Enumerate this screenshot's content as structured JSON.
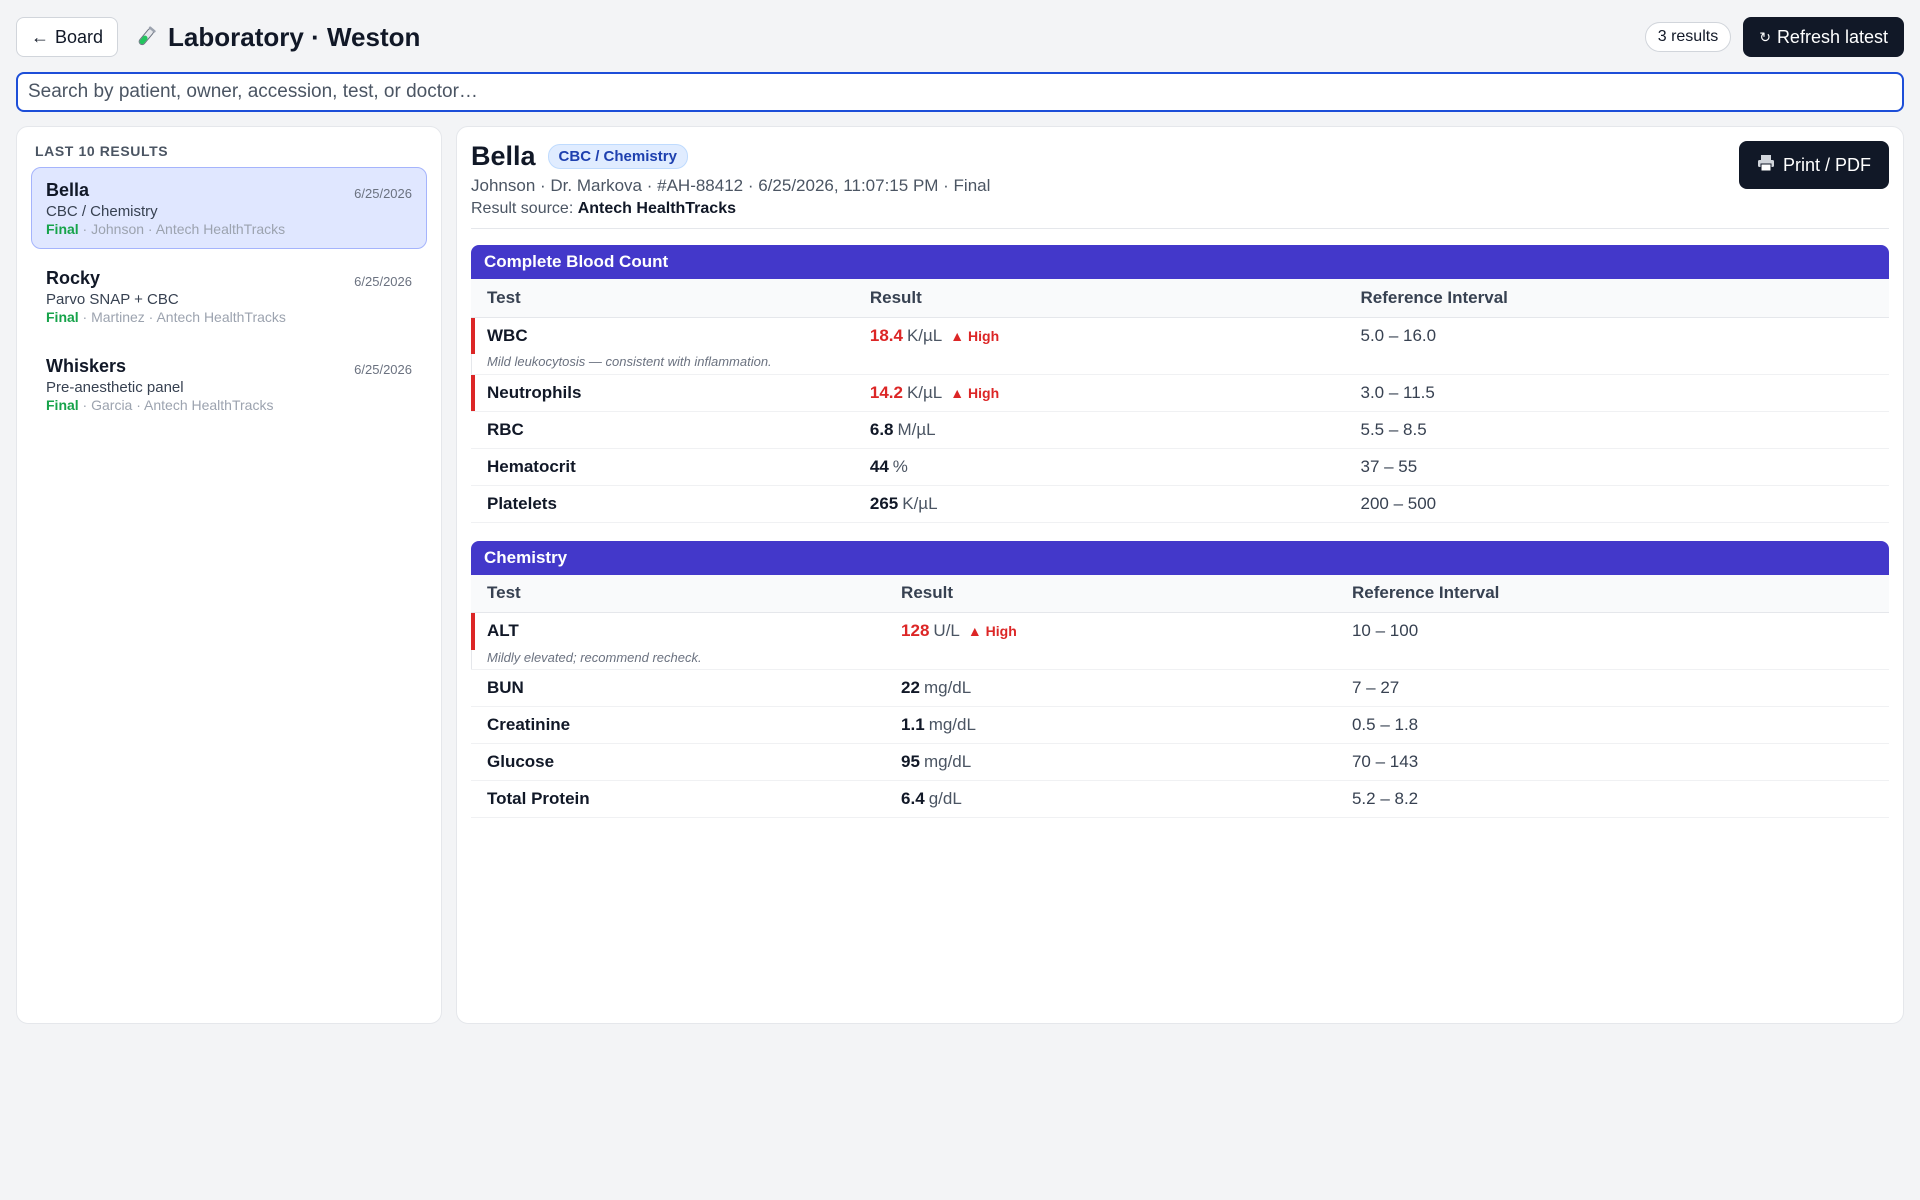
{
  "header": {
    "back_label": "Board",
    "title": "Laboratory · Weston",
    "results_count": "3 results",
    "refresh_label": "Refresh latest"
  },
  "search": {
    "placeholder": "Search by patient, owner, accession, test, or doctor…",
    "value": ""
  },
  "sidebar": {
    "heading": "LAST 10 RESULTS",
    "items": [
      {
        "name": "Bella",
        "date": "6/25/2026",
        "test": "CBC / Chemistry",
        "status": "Final",
        "meta": " · Johnson · Antech HealthTracks",
        "selected": true
      },
      {
        "name": "Rocky",
        "date": "6/25/2026",
        "test": "Parvo SNAP + CBC",
        "status": "Final",
        "meta": " · Martinez · Antech HealthTracks",
        "selected": false
      },
      {
        "name": "Whiskers",
        "date": "6/25/2026",
        "test": "Pre-anesthetic panel",
        "status": "Final",
        "meta": " · Garcia · Antech HealthTracks",
        "selected": false
      }
    ]
  },
  "detail": {
    "patient_name": "Bella",
    "panel_tag": "CBC / Chemistry",
    "meta": "Johnson · Dr. Markova · #AH-88412 · 6/25/2026, 11:07:15 PM · Final",
    "source_label": "Result source: ",
    "source_value": "Antech HealthTracks",
    "print_label": "Print / PDF",
    "columns": {
      "test": "Test",
      "result": "Result",
      "ref": "Reference Interval"
    },
    "sections": [
      {
        "title": "Complete Blood Count",
        "rows": [
          {
            "test": "WBC",
            "value": "18.4",
            "unit": "K/µL",
            "flag": "▲ High",
            "ref": "5.0 – 16.0",
            "note": "Mild leukocytosis — consistent with inflammation."
          },
          {
            "test": "Neutrophils",
            "value": "14.2",
            "unit": "K/µL",
            "flag": "▲ High",
            "ref": "3.0 – 11.5",
            "note": ""
          },
          {
            "test": "RBC",
            "value": "6.8",
            "unit": "M/µL",
            "flag": "",
            "ref": "5.5 – 8.5",
            "note": ""
          },
          {
            "test": "Hematocrit",
            "value": "44",
            "unit": "%",
            "flag": "",
            "ref": "37 – 55",
            "note": ""
          },
          {
            "test": "Platelets",
            "value": "265",
            "unit": "K/µL",
            "flag": "",
            "ref": "200 – 500",
            "note": ""
          }
        ]
      },
      {
        "title": "Chemistry",
        "rows": [
          {
            "test": "ALT",
            "value": "128",
            "unit": "U/L",
            "flag": "▲ High",
            "ref": "10 – 100",
            "note": "Mildly elevated; recommend recheck."
          },
          {
            "test": "BUN",
            "value": "22",
            "unit": "mg/dL",
            "flag": "",
            "ref": "7 – 27",
            "note": ""
          },
          {
            "test": "Creatinine",
            "value": "1.1",
            "unit": "mg/dL",
            "flag": "",
            "ref": "0.5 – 1.8",
            "note": ""
          },
          {
            "test": "Glucose",
            "value": "95",
            "unit": "mg/dL",
            "flag": "",
            "ref": "70 – 143",
            "note": ""
          },
          {
            "test": "Total Protein",
            "value": "6.4",
            "unit": "g/dL",
            "flag": "",
            "ref": "5.2 – 8.2",
            "note": ""
          }
        ]
      }
    ]
  },
  "colors": {
    "accent": "#4338ca",
    "high_flag": "#dc2626",
    "status_final": "#16a34a",
    "primary_button": "#111827"
  },
  "icons": {
    "back": "arrow-left-icon",
    "title": "test-tube-icon",
    "refresh": "refresh-icon",
    "print": "printer-icon"
  }
}
